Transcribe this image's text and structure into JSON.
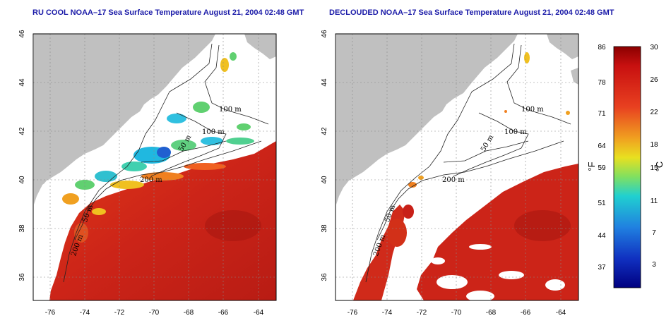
{
  "left_panel": {
    "title": "RU COOL NOAA–17 Sea Surface Temperature August 21, 2004 02:48 GMT"
  },
  "right_panel": {
    "title": "DECLOUDED NOAA–17 Sea Surface Temperature August 21, 2004 02:48 GMT"
  },
  "axes": {
    "lon_ticks": [
      "-76",
      "-74",
      "-72",
      "-70",
      "-68",
      "-66",
      "-64"
    ],
    "lat_ticks": [
      "46",
      "44",
      "42",
      "40",
      "38",
      "36"
    ]
  },
  "contours": {
    "c100": "100 m",
    "c200": "200 m",
    "c50": "50 m"
  },
  "colorbar": {
    "f_ticks": [
      "86",
      "78",
      "71",
      "64",
      "59",
      "51",
      "44",
      "37"
    ],
    "c_ticks": [
      "30",
      "26",
      "22",
      "18",
      "15",
      "11",
      "7",
      "3"
    ],
    "f_label": "°F",
    "c_label": "°C",
    "colors": [
      "#8b0000",
      "#d01818",
      "#e84020",
      "#f07820",
      "#f0c020",
      "#c8e020",
      "#40e0a0",
      "#20c8e0",
      "#2080e0",
      "#1030c0",
      "#000080"
    ]
  },
  "colors": {
    "land": "#c0c0c0",
    "warm": "#cc2418",
    "cloud": "#ffffff"
  }
}
